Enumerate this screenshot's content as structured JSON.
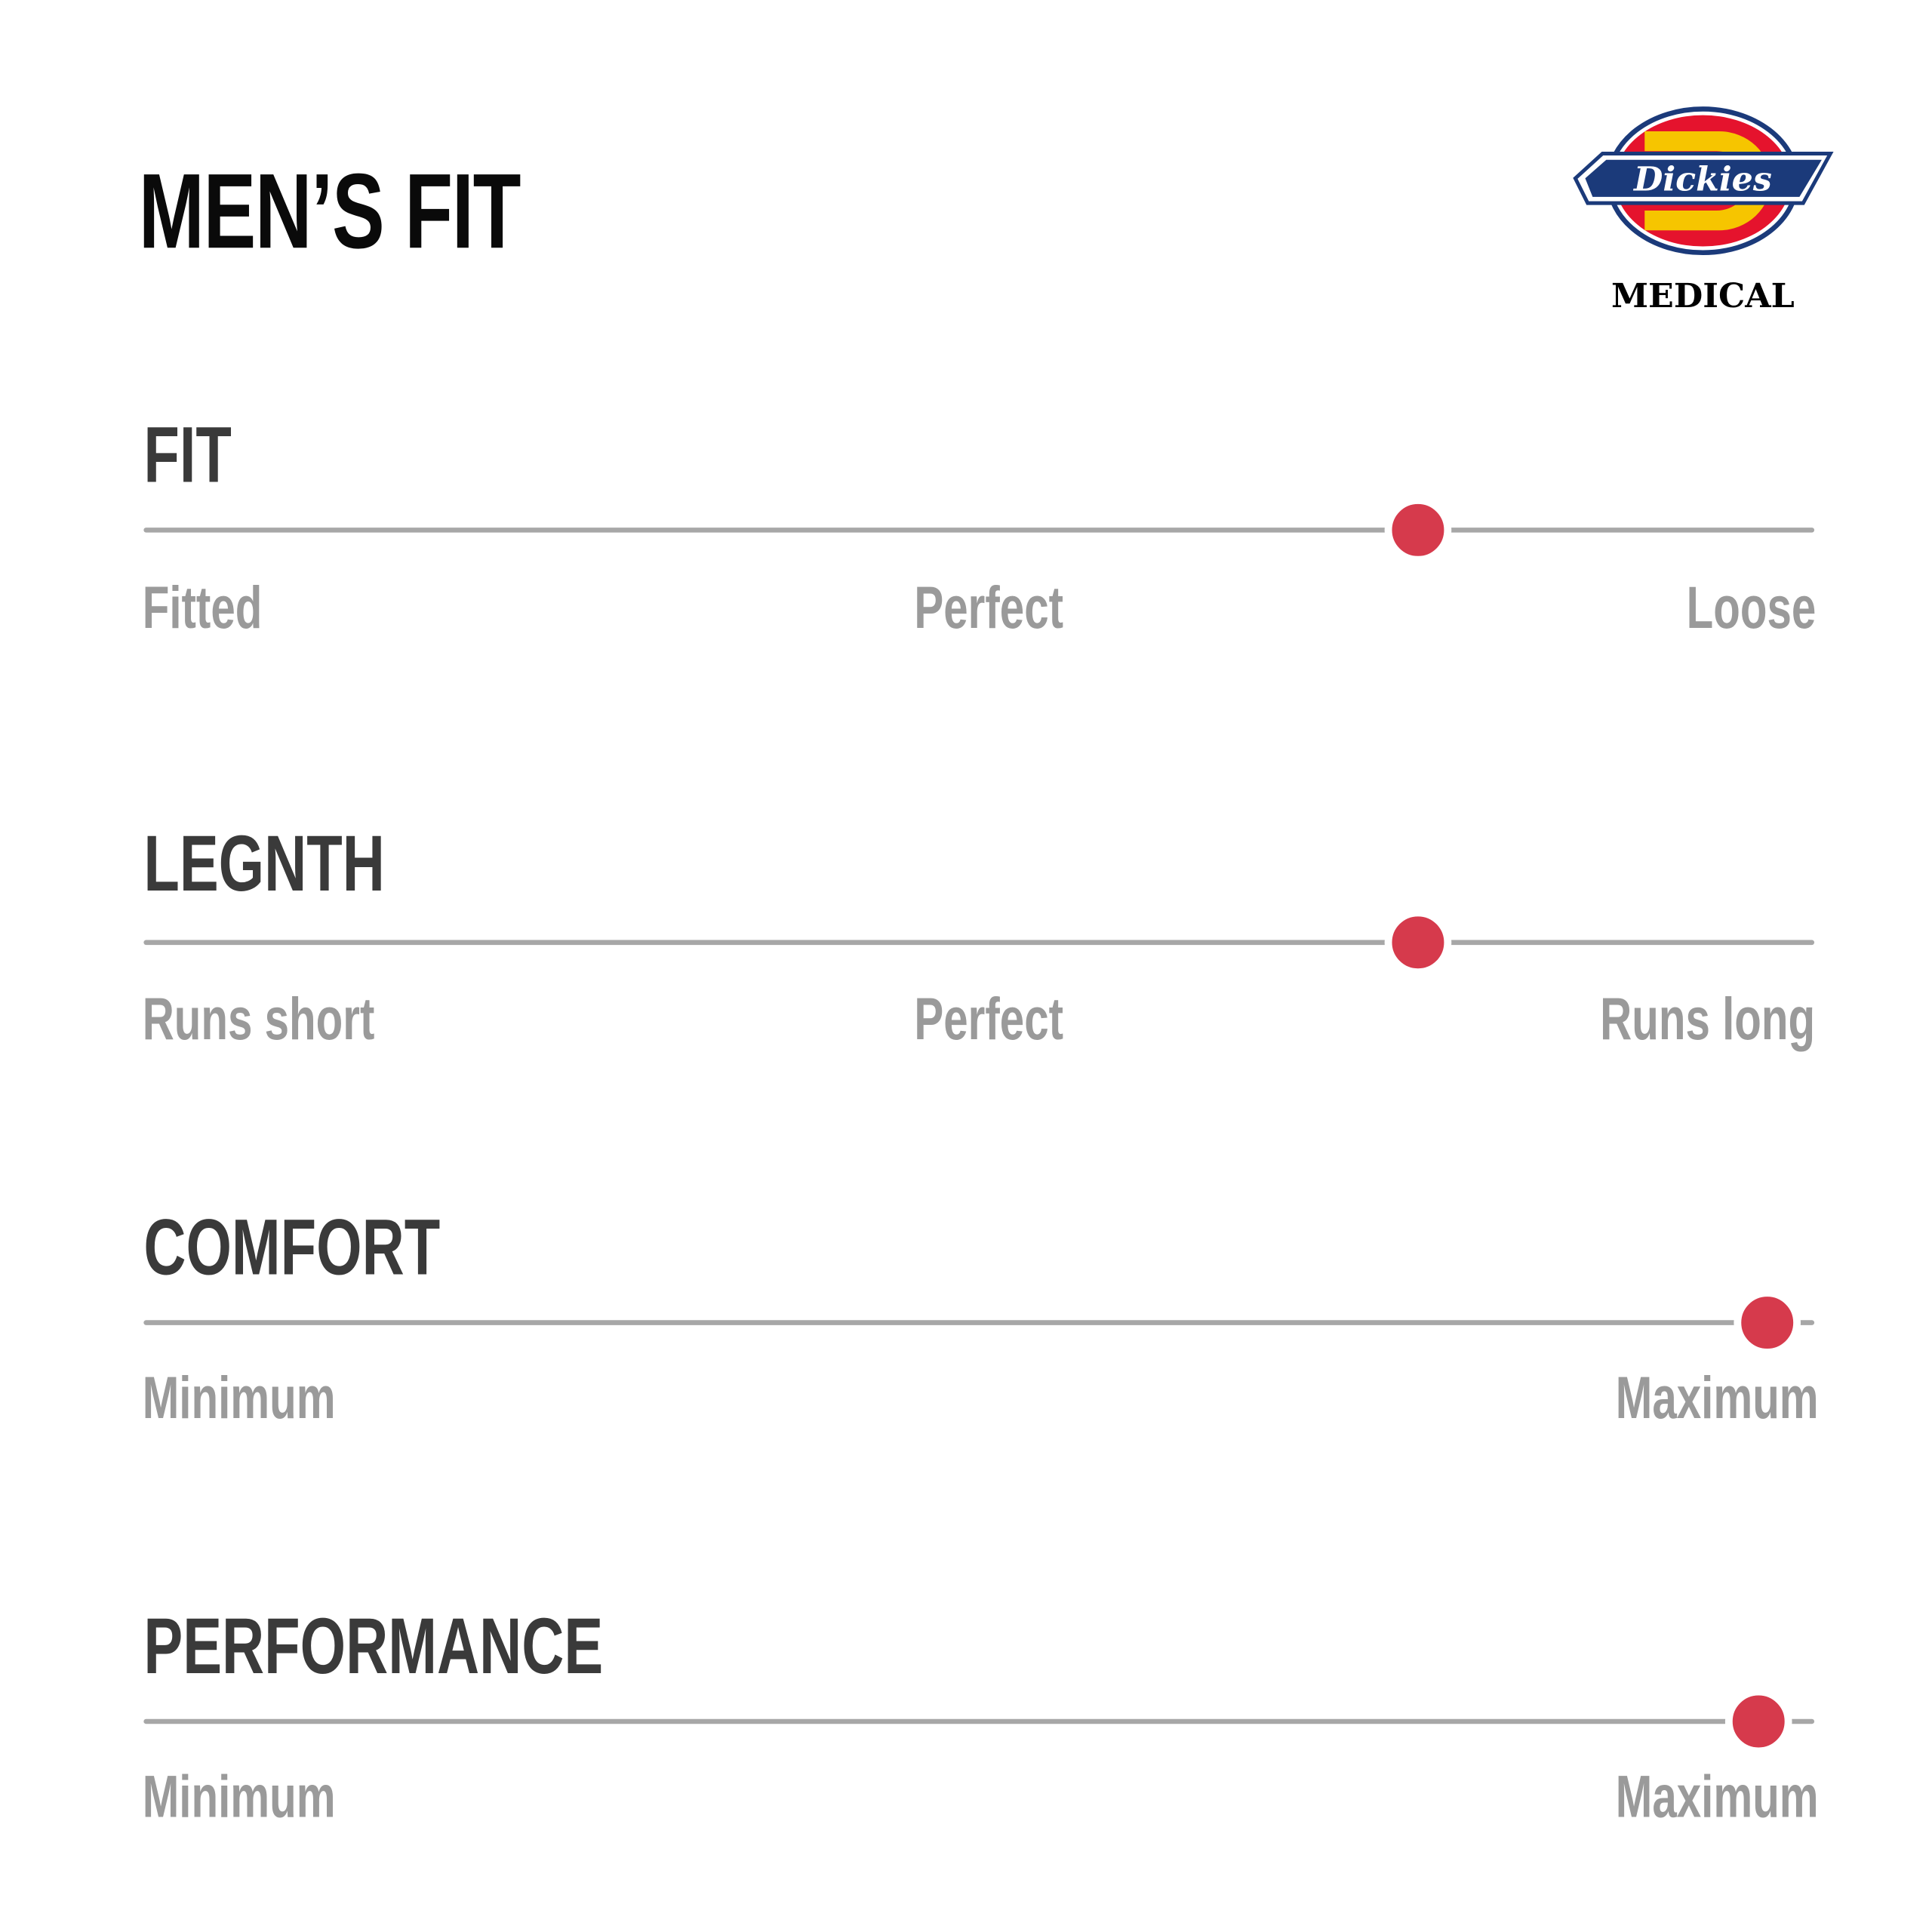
{
  "title": "MEN’S FIT",
  "logo": {
    "brand": "Dickies",
    "sub": "MEDICAL",
    "colors": {
      "red": "#e5132d",
      "yellow": "#f6c500",
      "navy": "#1b3a7a"
    }
  },
  "accent_color": "#d63a4c",
  "track_color": "#a7a7a7",
  "scales": [
    {
      "heading": "FIT",
      "value": 0.763,
      "labels": {
        "left": "Fitted",
        "center": "Perfect",
        "right": "Loose"
      }
    },
    {
      "heading": "LEGNTH",
      "value": 0.763,
      "labels": {
        "left": "Runs short",
        "center": "Perfect",
        "right": "Runs long"
      }
    },
    {
      "heading": "COMFORT",
      "value": 0.972,
      "labels": {
        "left": "Minimum",
        "right": "Maximum"
      }
    },
    {
      "heading": "PERFORMANCE",
      "value": 0.967,
      "labels": {
        "left": "Minimum",
        "right": "Maximum"
      }
    }
  ]
}
